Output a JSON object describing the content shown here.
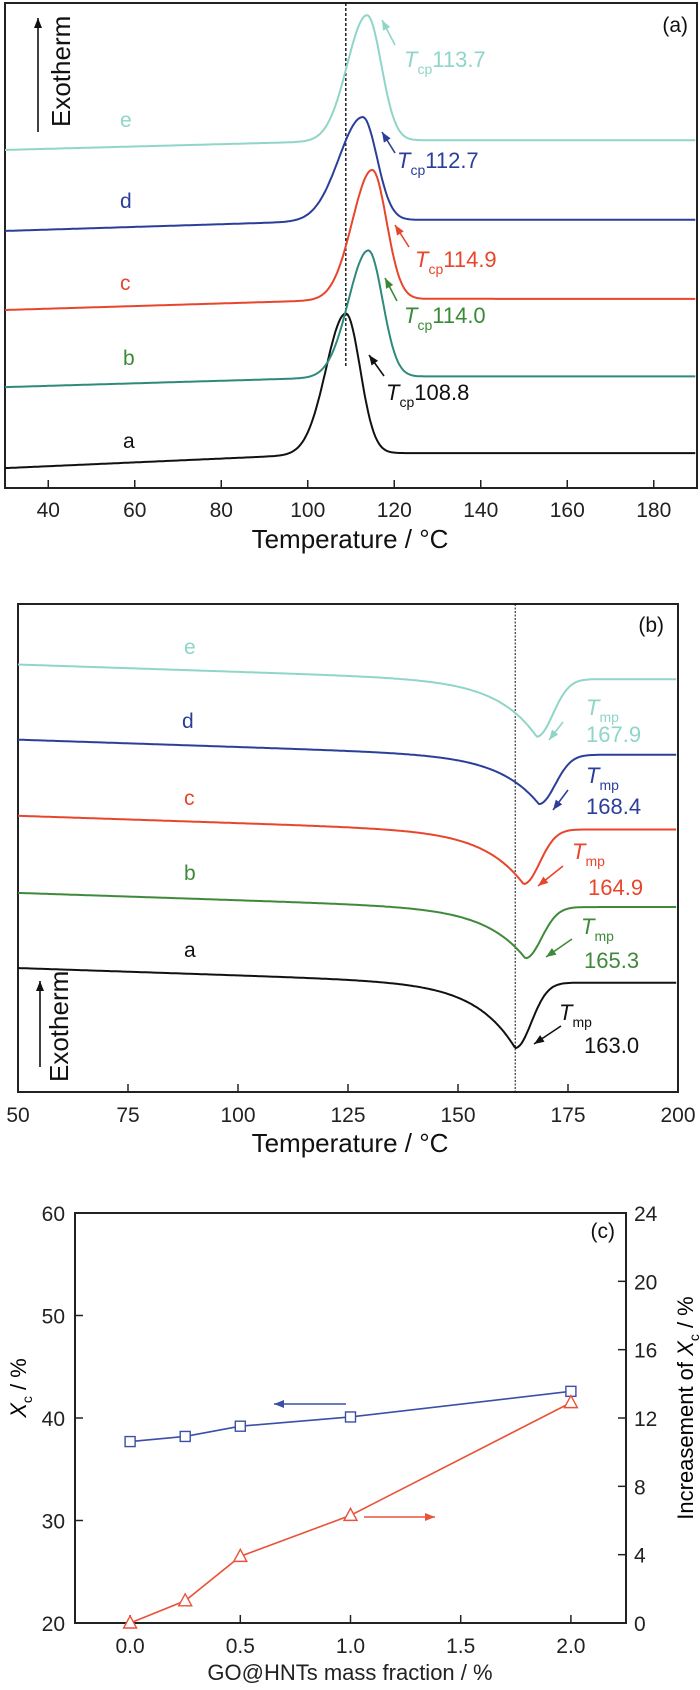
{
  "chart_data": [
    {
      "type": "line",
      "panel_label": "(a)",
      "xlabel": "Temperature / °C",
      "xlim": [
        30,
        190
      ],
      "xticks": [
        "40",
        "60",
        "80",
        "100",
        "120",
        "140",
        "160",
        "180"
      ],
      "ylabel": "Exotherm",
      "reference_line_T": 108.8,
      "grid": false,
      "series": [
        {
          "name": "a",
          "color": "#111111",
          "label_color": "#111111",
          "peak_T": 108.8,
          "baseline": [
            4.1,
            7.2
          ],
          "peak_level": 36,
          "annotation": {
            "symbol": "T",
            "sub": "cp",
            "value": "108.8"
          }
        },
        {
          "name": "b",
          "color": "#2e8a7c",
          "label_color": "#3a8a35",
          "peak_T": 114.0,
          "baseline": [
            20.8,
            23.0
          ],
          "peak_level": 49,
          "annotation": {
            "symbol": "T",
            "sub": "cp",
            "value": "114.0"
          }
        },
        {
          "name": "c",
          "color": "#e8452c",
          "label_color": "#e8452c",
          "peak_T": 114.9,
          "baseline": [
            36.7,
            39.0
          ],
          "peak_level": 65.6,
          "annotation": {
            "symbol": "T",
            "sub": "cp",
            "value": "114.9"
          }
        },
        {
          "name": "d",
          "color": "#2b3f9a",
          "label_color": "#2b3f9a",
          "peak_T": 112.7,
          "baseline": [
            53.0,
            55.3
          ],
          "peak_level": 76.5,
          "annotation": {
            "symbol": "T",
            "sub": "cp",
            "value": "112.7"
          }
        },
        {
          "name": "e",
          "color": "#8fd5c8",
          "label_color": "#8fd5c8",
          "peak_T": 113.7,
          "baseline": [
            69.7,
            71.7
          ],
          "peak_level": 97.5,
          "annotation": {
            "symbol": "T",
            "sub": "cp",
            "value": "113.7"
          }
        }
      ]
    },
    {
      "type": "line",
      "panel_label": "(b)",
      "xlabel": "Temperature / °C",
      "xlim": [
        50,
        200
      ],
      "xticks": [
        "50",
        "75",
        "100",
        "125",
        "150",
        "175",
        "200"
      ],
      "ylabel": "Exotherm",
      "reference_line_T": 163.0,
      "grid": false,
      "series": [
        {
          "name": "a",
          "color": "#111111",
          "label_color": "#111111",
          "peak_T": 163.0,
          "baseline": [
            25.4,
            22.4
          ],
          "peak_level": 9.0,
          "annotation": {
            "symbol": "T",
            "sub": "mp",
            "value": "163.0"
          }
        },
        {
          "name": "b",
          "color": "#3f8a3a",
          "label_color": "#3f8a3a",
          "peak_T": 165.3,
          "baseline": [
            40.8,
            37.9
          ],
          "peak_level": 27.4,
          "annotation": {
            "symbol": "T",
            "sub": "mp",
            "value": "165.3"
          }
        },
        {
          "name": "c",
          "color": "#e8452c",
          "label_color": "#e8452c",
          "peak_T": 164.9,
          "baseline": [
            56.6,
            53.8
          ],
          "peak_level": 42.6,
          "annotation": {
            "symbol": "T",
            "sub": "mp",
            "value": "164.9"
          }
        },
        {
          "name": "d",
          "color": "#2b3f9a",
          "label_color": "#2b3f9a",
          "peak_T": 168.4,
          "baseline": [
            72.2,
            69.1
          ],
          "peak_level": 59.0,
          "annotation": {
            "symbol": "T",
            "sub": "mp",
            "value": "168.4"
          }
        },
        {
          "name": "e",
          "color": "#8fd5c8",
          "label_color": "#8fd5c8",
          "peak_T": 167.9,
          "baseline": [
            87.6,
            84.6
          ],
          "peak_level": 72.8,
          "annotation": {
            "symbol": "T",
            "sub": "mp",
            "value": "167.9"
          }
        }
      ]
    },
    {
      "type": "line",
      "panel_label": "(c)",
      "xlabel": "GO@HNTs mass fraction / %",
      "xlim": [
        -0.25,
        2.25
      ],
      "xticks": [
        "0.0",
        "0.5",
        "1.0",
        "1.5",
        "2.0"
      ],
      "ylabel": {
        "symbol": "X",
        "sub": "c",
        "rest": " / %"
      },
      "ylim": [
        20,
        60
      ],
      "yticks": [
        "20",
        "30",
        "40",
        "50",
        "60"
      ],
      "y2label": {
        "prefix": "Increasement of ",
        "symbol": "X",
        "sub": "c",
        "rest": " / %"
      },
      "y2lim": [
        0,
        24
      ],
      "y2ticks": [
        "0",
        "4",
        "8",
        "12",
        "16",
        "20",
        "24"
      ],
      "grid": false,
      "x": [
        0.0,
        0.25,
        0.5,
        1.0,
        2.0
      ],
      "series": [
        {
          "axis": "left",
          "marker": "square",
          "color": "#3b4fa8",
          "values": [
            37.7,
            38.2,
            39.2,
            40.1,
            42.6
          ]
        },
        {
          "axis": "right",
          "marker": "triangle",
          "color": "#e8533a",
          "values": [
            0.0,
            1.3,
            3.9,
            6.3,
            12.9
          ]
        }
      ]
    }
  ]
}
